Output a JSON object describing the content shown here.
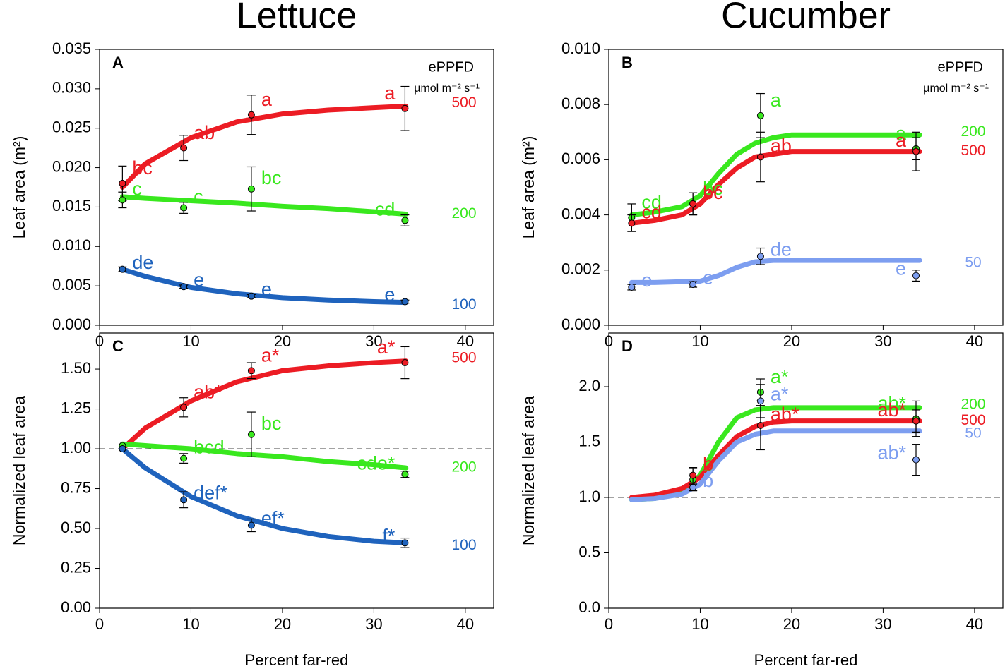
{
  "chart_data": [
    {
      "type": "scatter",
      "label": "A",
      "title": "Lettuce",
      "ylabel": "Leaf area (m²)",
      "legend_title": "ePPFD",
      "legend_unit": "µmol m⁻² s⁻¹",
      "xlim": [
        0,
        43.1
      ],
      "xticks": [
        0,
        10,
        20,
        30,
        40
      ],
      "ylim": [
        0,
        0.035
      ],
      "yticks": [
        {
          "value": 0,
          "label": "0.000"
        },
        0.005,
        {
          "value": 0.01,
          "label": "0.010"
        },
        0.015,
        {
          "value": 0.02,
          "label": "0.020"
        },
        0.025,
        {
          "value": 0.03,
          "label": "0.030"
        },
        0.035
      ],
      "x": [
        2.5,
        9.2,
        16.6,
        33.4
      ],
      "fit_x": [
        2.5,
        5,
        10,
        15,
        20,
        25,
        30,
        33.5
      ],
      "series": [
        {
          "name": "500",
          "color": "#ec1c24",
          "values": [
            0.018,
            0.0225,
            0.0267,
            0.0275
          ],
          "errors": [
            0.0022,
            0.0016,
            0.0025,
            0.0028
          ],
          "letters": [
            "bc",
            "ab",
            "a",
            "a"
          ],
          "fit": [
            0.0175,
            0.0205,
            0.0238,
            0.0258,
            0.0268,
            0.0273,
            0.0276,
            0.0278
          ]
        },
        {
          "name": "200",
          "color": "#39e81e",
          "values": [
            0.0159,
            0.0149,
            0.0173,
            0.0133
          ],
          "errors": [
            0.001,
            0.0007,
            0.0028,
            0.0007
          ],
          "letters": [
            "c",
            "c",
            "bc",
            "cd"
          ],
          "fit": [
            0.0163,
            0.0161,
            0.0158,
            0.0155,
            0.0151,
            0.0148,
            0.0144,
            0.0141
          ]
        },
        {
          "name": "100",
          "color": "#1f63bd",
          "values": [
            0.0071,
            0.0049,
            0.0037,
            0.003
          ],
          "errors": [
            0.0003,
            0.0002,
            0.0002,
            0.0002
          ],
          "letters": [
            "de",
            "e",
            "e",
            "e"
          ],
          "fit": [
            0.0071,
            0.0062,
            0.0048,
            0.004,
            0.0035,
            0.0032,
            0.003,
            0.0029
          ]
        }
      ]
    },
    {
      "type": "scatter",
      "label": "B",
      "title": "Cucumber",
      "ylabel": "Leaf area (m²)",
      "legend_title": "ePPFD",
      "legend_unit": "µmol m⁻² s⁻¹",
      "xlim": [
        0,
        43.1
      ],
      "xticks": [
        0,
        10,
        20,
        30,
        40
      ],
      "ylim": [
        0,
        0.01
      ],
      "yticks": [
        {
          "value": 0,
          "label": "0.000"
        },
        0.002,
        0.004,
        0.006,
        0.008,
        {
          "value": 0.01,
          "label": "0.010"
        }
      ],
      "x": [
        2.5,
        9.2,
        16.6,
        33.6
      ],
      "fit_x": [
        2.5,
        5,
        8,
        10,
        12,
        14,
        16,
        18,
        20,
        25,
        30,
        34
      ],
      "series": [
        {
          "name": "200",
          "color": "#39e81e",
          "values": [
            0.0039,
            0.0044,
            0.0076,
            0.0064
          ],
          "errors": [
            0.0005,
            0.0004,
            0.0008,
            0.0004
          ],
          "letters": [
            "cd",
            "bc",
            "a",
            "a"
          ],
          "fit": [
            0.004,
            0.0041,
            0.0043,
            0.0047,
            0.0055,
            0.0062,
            0.0066,
            0.0068,
            0.0069,
            0.0069,
            0.0069,
            0.0069
          ]
        },
        {
          "name": "500",
          "color": "#ec1c24",
          "values": [
            0.0037,
            0.0044,
            0.0061,
            0.0063
          ],
          "errors": [
            0.0003,
            0.0004,
            0.0009,
            0.0007
          ],
          "letters": [
            "cd",
            "bc",
            "ab",
            "a"
          ],
          "fit": [
            0.0037,
            0.0038,
            0.004,
            0.0044,
            0.0051,
            0.0057,
            0.0061,
            0.0062,
            0.0063,
            0.0063,
            0.0063,
            0.0063
          ]
        },
        {
          "name": "50",
          "color": "#7d9ef0",
          "values": [
            0.00138,
            0.00148,
            0.0025,
            0.0018
          ],
          "errors": [
            0.0001,
            0.0001,
            0.0003,
            0.0002
          ],
          "letters": [
            "e",
            "e",
            "de",
            "e"
          ],
          "fit": [
            0.00155,
            0.00155,
            0.00158,
            0.0016,
            0.0018,
            0.0021,
            0.0023,
            0.00235,
            0.00235,
            0.00235,
            0.00235,
            0.00235
          ]
        }
      ]
    },
    {
      "type": "scatter",
      "label": "C",
      "xlabel": "Percent far-red",
      "ylabel": "Normalized leaf area",
      "ref_line": 1,
      "xlim": [
        0,
        43.1
      ],
      "xticks": [
        0,
        10,
        20,
        30,
        40
      ],
      "ylim": [
        0,
        1.726
      ],
      "yticks": [
        {
          "value": 0,
          "label": "0.00"
        },
        0.25,
        {
          "value": 0.5,
          "label": "0.50"
        },
        0.75,
        {
          "value": 1,
          "label": "1.00"
        },
        1.25,
        {
          "value": 1.5,
          "label": "1.50"
        }
      ],
      "x": [
        2.5,
        9.2,
        16.6,
        33.4
      ],
      "fit_x": [
        2.5,
        5,
        10,
        15,
        20,
        25,
        30,
        33.5
      ],
      "series": [
        {
          "name": "500",
          "color": "#ec1c24",
          "values": [
            1.0,
            1.26,
            1.49,
            1.54
          ],
          "errors": [
            0,
            0.06,
            0.05,
            0.1
          ],
          "letters": [
            null,
            "ab*",
            "a*",
            "a*"
          ],
          "fit": [
            1.0,
            1.13,
            1.3,
            1.42,
            1.49,
            1.52,
            1.54,
            1.55
          ]
        },
        {
          "name": "200",
          "color": "#39e81e",
          "values": [
            1.02,
            0.94,
            1.09,
            0.84
          ],
          "errors": [
            0,
            0.03,
            0.14,
            0.02
          ],
          "letters": [
            null,
            "bcd",
            "bc",
            "cde*"
          ],
          "fit": [
            1.03,
            1.02,
            1.0,
            0.97,
            0.95,
            0.92,
            0.9,
            0.88
          ]
        },
        {
          "name": "100",
          "color": "#1f63bd",
          "values": [
            1.0,
            0.68,
            0.52,
            0.41
          ],
          "errors": [
            0,
            0.05,
            0.04,
            0.03
          ],
          "letters": [
            null,
            "def*",
            "ef*",
            "f*"
          ],
          "fit": [
            1.0,
            0.88,
            0.7,
            0.58,
            0.5,
            0.45,
            0.42,
            0.41
          ]
        }
      ]
    },
    {
      "type": "scatter",
      "label": "D",
      "xlabel": "Percent far-red",
      "ylabel": "Normalized leaf area",
      "ref_line": 1,
      "xlim": [
        0,
        43.1
      ],
      "xticks": [
        0,
        10,
        20,
        30,
        40
      ],
      "ylim": [
        0,
        2.484
      ],
      "yticks": [
        {
          "value": 0,
          "label": "0.0"
        },
        0.5,
        {
          "value": 1,
          "label": "1.0"
        },
        1.5,
        {
          "value": 2,
          "label": "2.0"
        }
      ],
      "x": [
        2.5,
        9.2,
        16.6,
        33.6
      ],
      "fit_x": [
        2.5,
        5,
        8,
        10,
        12,
        14,
        16,
        18,
        20,
        25,
        30,
        34
      ],
      "series": [
        {
          "name": "200",
          "color": "#39e81e",
          "values": [
            null,
            1.16,
            1.95,
            1.71
          ],
          "errors": [
            null,
            0.1,
            0.12,
            0.16
          ],
          "letters": [
            null,
            "b",
            "a*",
            "ab*"
          ],
          "fit": [
            0.98,
            0.99,
            1.05,
            1.2,
            1.5,
            1.72,
            1.79,
            1.81,
            1.81,
            1.81,
            1.81,
            1.81
          ]
        },
        {
          "name": "500",
          "color": "#ec1c24",
          "values": [
            null,
            1.2,
            1.65,
            1.69
          ],
          "errors": [
            null,
            0.07,
            0.22,
            0.1
          ],
          "letters": [
            null,
            "b",
            "ab*",
            "ab*"
          ],
          "fit": [
            1.0,
            1.02,
            1.08,
            1.18,
            1.38,
            1.55,
            1.64,
            1.68,
            1.69,
            1.69,
            1.69,
            1.69
          ]
        },
        {
          "name": "50",
          "color": "#7d9ef0",
          "values": [
            null,
            1.09,
            1.87,
            1.34
          ],
          "errors": [
            null,
            0.03,
            0.15,
            0.14
          ],
          "letters": [
            null,
            "b",
            "a*",
            "ab*"
          ],
          "fit": [
            0.98,
            0.99,
            1.03,
            1.12,
            1.33,
            1.5,
            1.57,
            1.6,
            1.6,
            1.6,
            1.6,
            1.6
          ]
        }
      ]
    }
  ]
}
